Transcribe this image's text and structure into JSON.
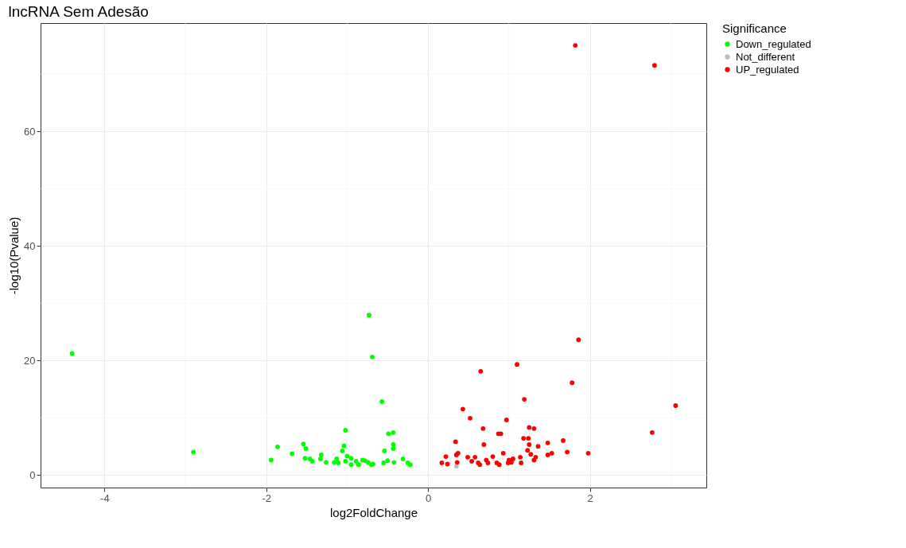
{
  "chart_data": {
    "type": "scatter",
    "title": "lncRNA Sem Adesão",
    "xlabel": "log2FoldChange",
    "ylabel": "-log10(Pvalue)",
    "legend_title": "Significance",
    "legend": "right",
    "grid": true,
    "marker": "circle",
    "xlim": [
      -4.79,
      3.44
    ],
    "ylim": [
      -2.2,
      78.9
    ],
    "xticks": [
      -4,
      -2,
      0,
      2
    ],
    "yticks": [
      0,
      20,
      40,
      60
    ],
    "series": [
      {
        "name": "Down_regulated",
        "color": "#00ff00",
        "x": [
          -4.4,
          -2.9,
          -1.94,
          -1.86,
          -1.68,
          -1.54,
          -1.51,
          -1.52,
          -1.46,
          -1.43,
          -1.33,
          -1.32,
          -1.26,
          -1.16,
          -1.13,
          -1.11,
          -1.02,
          -1.06,
          -1.04,
          -1.02,
          -1.0,
          -0.95,
          -0.95,
          -0.89,
          -0.86,
          -0.81,
          -0.78,
          -0.74,
          -0.7,
          -0.68,
          -0.73,
          -0.69,
          -0.57,
          -0.54,
          -0.55,
          -0.5,
          -0.49,
          -0.43,
          -0.43,
          -0.43,
          -0.42,
          -0.31,
          -0.25,
          -0.22
        ],
        "values": [
          21.2,
          4.0,
          2.6,
          4.9,
          3.7,
          5.4,
          4.6,
          2.9,
          2.8,
          2.4,
          2.8,
          3.5,
          2.2,
          2.2,
          2.8,
          2.1,
          2.4,
          4.2,
          5.1,
          7.8,
          3.3,
          1.8,
          2.9,
          2.4,
          1.8,
          2.6,
          2.5,
          2.2,
          1.8,
          1.9,
          27.9,
          20.6,
          12.8,
          4.2,
          2.1,
          2.5,
          7.2,
          7.4,
          5.3,
          4.6,
          2.2,
          2.8,
          2.1,
          1.8
        ]
      },
      {
        "name": "Not_different",
        "color": "#bebebe",
        "x": [
          0.35
        ],
        "values": [
          1.5
        ]
      },
      {
        "name": "UP_regulated",
        "color": "#ff0000",
        "x": [
          0.17,
          0.24,
          0.22,
          0.34,
          0.35,
          0.36,
          0.37,
          0.43,
          0.52,
          0.49,
          0.58,
          0.54,
          0.62,
          0.64,
          0.65,
          0.68,
          0.69,
          0.72,
          0.74,
          0.8,
          0.85,
          0.88,
          0.87,
          0.9,
          0.93,
          0.97,
          0.99,
          1.0,
          1.03,
          1.05,
          1.1,
          1.15,
          1.14,
          1.19,
          1.18,
          1.24,
          1.25,
          1.23,
          1.25,
          1.27,
          1.31,
          1.31,
          1.33,
          1.36,
          1.48,
          1.53,
          1.48,
          1.67,
          1.72,
          1.78,
          1.86,
          1.98,
          2.77,
          3.06,
          1.82,
          2.8
        ],
        "values": [
          2.1,
          1.9,
          3.2,
          5.8,
          3.5,
          2.2,
          3.8,
          11.5,
          9.9,
          3.1,
          3.1,
          2.4,
          2.1,
          1.8,
          18.1,
          8.1,
          5.3,
          2.6,
          2.1,
          3.2,
          2.1,
          1.8,
          7.2,
          7.2,
          3.8,
          9.6,
          2.1,
          2.6,
          2.2,
          2.8,
          19.3,
          2.1,
          3.1,
          13.2,
          6.4,
          6.4,
          8.3,
          4.3,
          5.3,
          3.6,
          8.1,
          2.6,
          3.1,
          5.0,
          3.5,
          3.8,
          5.6,
          6.0,
          4.0,
          16.1,
          23.6,
          3.8,
          7.4,
          12.1,
          75.0,
          71.5
        ]
      }
    ]
  }
}
